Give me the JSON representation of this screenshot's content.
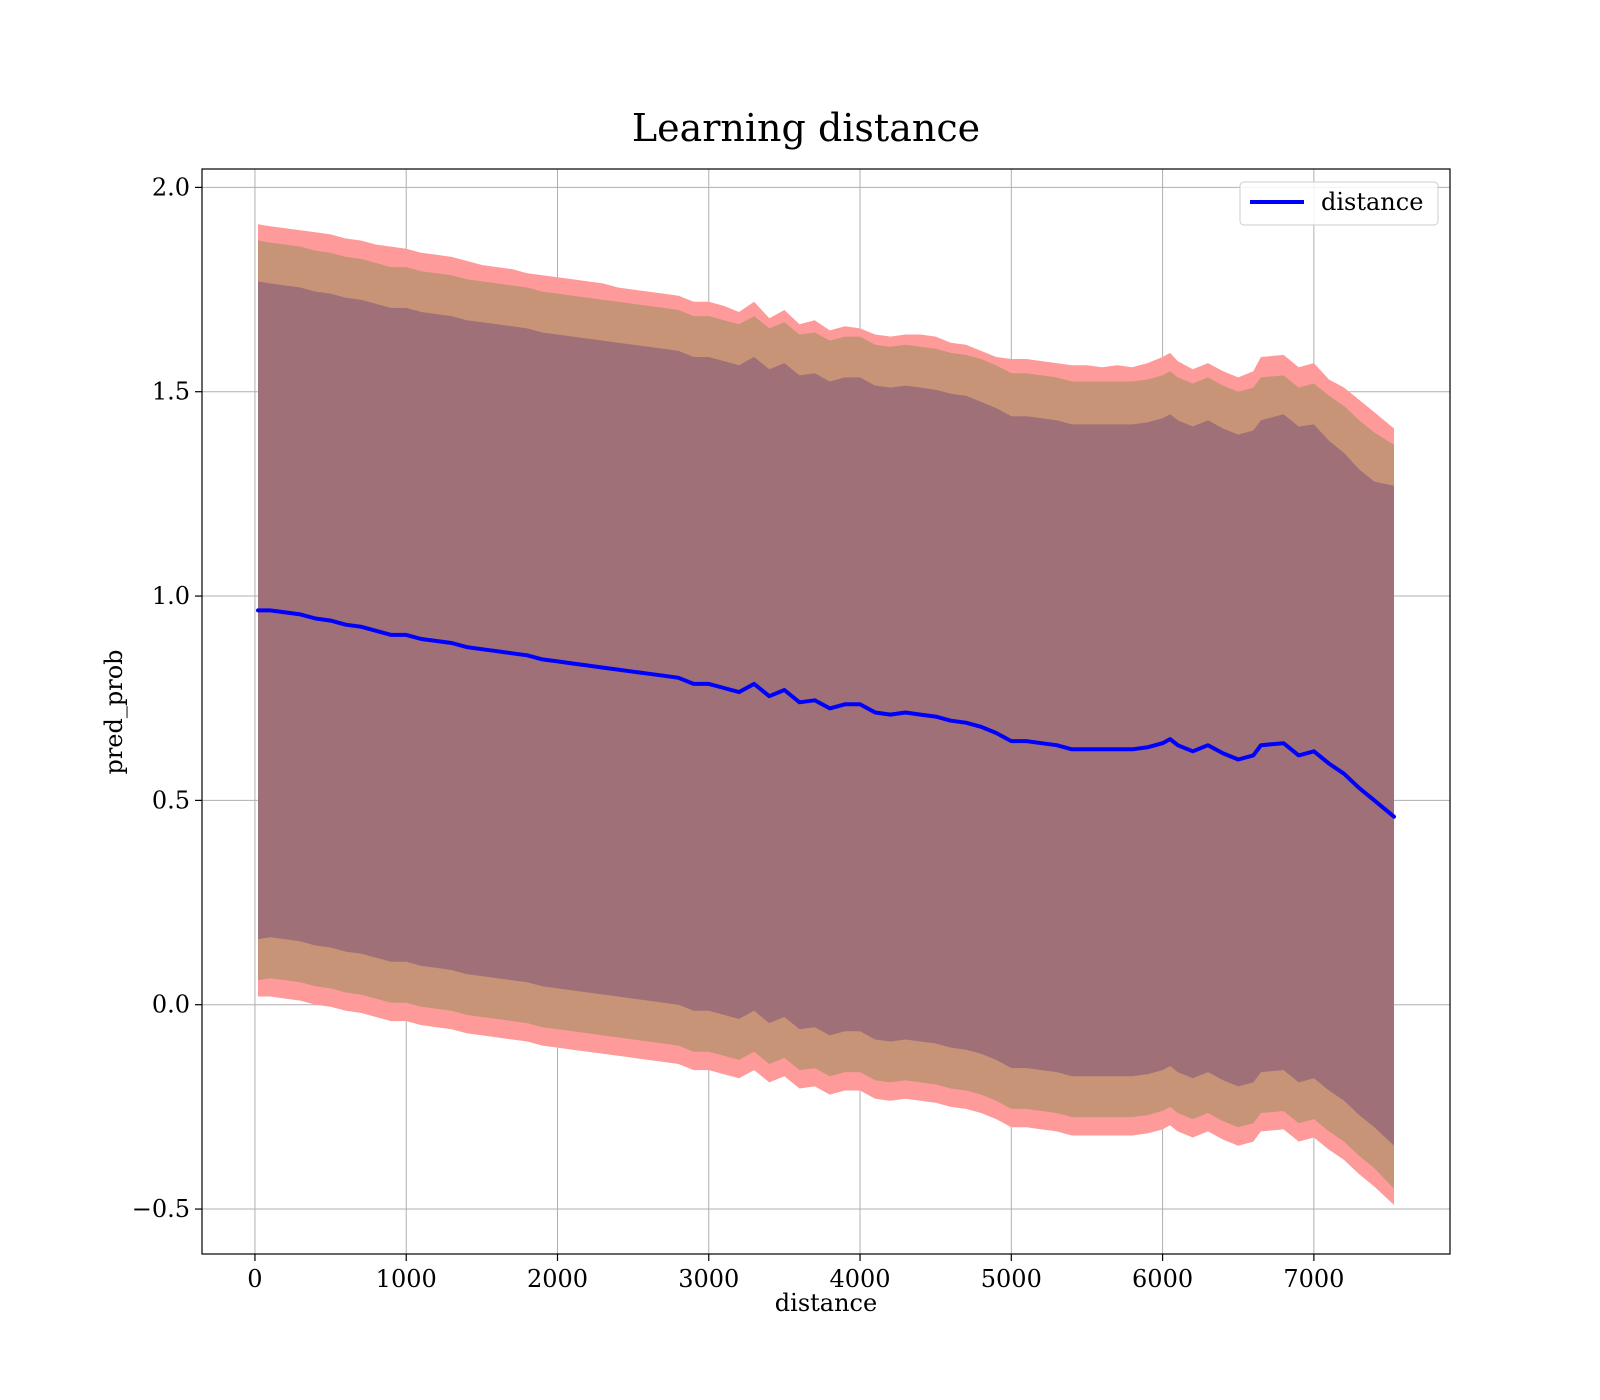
{
  "chart_data": {
    "type": "line",
    "title": "Learning distance",
    "xlabel": "distance",
    "ylabel": "pred_prob",
    "xlim": [
      -350,
      7900
    ],
    "ylim": [
      -0.61,
      2.045
    ],
    "xticks": [
      0,
      1000,
      2000,
      3000,
      4000,
      5000,
      6000,
      7000
    ],
    "xtick_labels": [
      "0",
      "1000",
      "2000",
      "3000",
      "4000",
      "5000",
      "6000",
      "7000"
    ],
    "yticks": [
      -0.5,
      0.0,
      0.5,
      1.0,
      1.5,
      2.0
    ],
    "ytick_labels": [
      "−0.5",
      "0.0",
      "0.5",
      "1.0",
      "1.5",
      "2.0"
    ],
    "grid": true,
    "legend": {
      "position": "top-right",
      "entries": [
        "distance"
      ]
    },
    "colors": {
      "line": "#0000ff",
      "band_outer": "#ff9a9a",
      "band_middle": "#c79478",
      "band_inner": "#a07079",
      "grid": "#b0b0b0"
    },
    "series": [
      {
        "name": "distance",
        "x": [
          20,
          100,
          200,
          300,
          400,
          500,
          600,
          700,
          800,
          900,
          1000,
          1100,
          1200,
          1300,
          1400,
          1500,
          1600,
          1700,
          1800,
          1900,
          2000,
          2100,
          2200,
          2300,
          2400,
          2500,
          2600,
          2700,
          2800,
          2900,
          3000,
          3100,
          3200,
          3300,
          3400,
          3500,
          3600,
          3700,
          3800,
          3900,
          4000,
          4100,
          4200,
          4300,
          4400,
          4500,
          4600,
          4700,
          4800,
          4900,
          5000,
          5100,
          5200,
          5300,
          5400,
          5500,
          5600,
          5700,
          5800,
          5900,
          6000,
          6050,
          6100,
          6200,
          6300,
          6400,
          6500,
          6600,
          6650,
          6800,
          6900,
          7000,
          7100,
          7200,
          7300,
          7400,
          7530
        ],
        "y": [
          0.965,
          0.965,
          0.96,
          0.955,
          0.945,
          0.94,
          0.93,
          0.925,
          0.915,
          0.905,
          0.905,
          0.895,
          0.89,
          0.885,
          0.875,
          0.87,
          0.865,
          0.86,
          0.855,
          0.845,
          0.84,
          0.835,
          0.83,
          0.825,
          0.82,
          0.815,
          0.81,
          0.805,
          0.8,
          0.785,
          0.785,
          0.775,
          0.765,
          0.785,
          0.755,
          0.77,
          0.74,
          0.745,
          0.725,
          0.735,
          0.735,
          0.715,
          0.71,
          0.715,
          0.71,
          0.705,
          0.695,
          0.69,
          0.68,
          0.665,
          0.645,
          0.645,
          0.64,
          0.635,
          0.625,
          0.625,
          0.625,
          0.625,
          0.625,
          0.63,
          0.64,
          0.65,
          0.635,
          0.62,
          0.635,
          0.615,
          0.6,
          0.61,
          0.635,
          0.64,
          0.61,
          0.62,
          0.59,
          0.565,
          0.53,
          0.5,
          0.46
        ]
      }
    ],
    "bands": [
      {
        "level": "outer",
        "upper": [
          1.91,
          1.905,
          1.9,
          1.895,
          1.89,
          1.885,
          1.875,
          1.87,
          1.86,
          1.855,
          1.85,
          1.84,
          1.835,
          1.83,
          1.82,
          1.81,
          1.805,
          1.8,
          1.79,
          1.785,
          1.78,
          1.775,
          1.77,
          1.765,
          1.755,
          1.75,
          1.745,
          1.74,
          1.735,
          1.72,
          1.72,
          1.71,
          1.695,
          1.72,
          1.68,
          1.7,
          1.665,
          1.675,
          1.65,
          1.66,
          1.655,
          1.64,
          1.635,
          1.64,
          1.64,
          1.635,
          1.62,
          1.615,
          1.6,
          1.585,
          1.58,
          1.58,
          1.575,
          1.57,
          1.565,
          1.565,
          1.56,
          1.565,
          1.56,
          1.57,
          1.585,
          1.595,
          1.575,
          1.555,
          1.57,
          1.55,
          1.535,
          1.55,
          1.585,
          1.59,
          1.56,
          1.57,
          1.53,
          1.51,
          1.48,
          1.45,
          1.41
        ],
        "lower": [
          0.02,
          0.02,
          0.015,
          0.01,
          0.0,
          -0.005,
          -0.015,
          -0.02,
          -0.03,
          -0.04,
          -0.04,
          -0.05,
          -0.055,
          -0.06,
          -0.07,
          -0.075,
          -0.08,
          -0.085,
          -0.09,
          -0.1,
          -0.105,
          -0.11,
          -0.115,
          -0.12,
          -0.125,
          -0.13,
          -0.135,
          -0.14,
          -0.145,
          -0.16,
          -0.16,
          -0.17,
          -0.18,
          -0.16,
          -0.19,
          -0.175,
          -0.205,
          -0.2,
          -0.22,
          -0.21,
          -0.21,
          -0.23,
          -0.235,
          -0.23,
          -0.235,
          -0.24,
          -0.25,
          -0.255,
          -0.265,
          -0.28,
          -0.3,
          -0.3,
          -0.305,
          -0.31,
          -0.32,
          -0.32,
          -0.32,
          -0.32,
          -0.32,
          -0.315,
          -0.305,
          -0.295,
          -0.31,
          -0.325,
          -0.31,
          -0.33,
          -0.345,
          -0.335,
          -0.31,
          -0.305,
          -0.335,
          -0.325,
          -0.355,
          -0.38,
          -0.415,
          -0.445,
          -0.49
        ]
      },
      {
        "level": "middle",
        "upper": [
          1.87,
          1.865,
          1.86,
          1.855,
          1.845,
          1.84,
          1.83,
          1.825,
          1.815,
          1.805,
          1.805,
          1.795,
          1.79,
          1.785,
          1.775,
          1.77,
          1.765,
          1.76,
          1.755,
          1.745,
          1.74,
          1.735,
          1.73,
          1.725,
          1.72,
          1.715,
          1.71,
          1.705,
          1.7,
          1.685,
          1.685,
          1.675,
          1.665,
          1.685,
          1.655,
          1.67,
          1.64,
          1.645,
          1.625,
          1.635,
          1.635,
          1.615,
          1.61,
          1.615,
          1.61,
          1.605,
          1.595,
          1.59,
          1.58,
          1.565,
          1.545,
          1.545,
          1.54,
          1.535,
          1.525,
          1.525,
          1.525,
          1.525,
          1.525,
          1.53,
          1.54,
          1.55,
          1.535,
          1.52,
          1.535,
          1.515,
          1.5,
          1.51,
          1.535,
          1.54,
          1.51,
          1.52,
          1.49,
          1.465,
          1.43,
          1.4,
          1.37
        ],
        "lower": [
          0.06,
          0.065,
          0.06,
          0.055,
          0.045,
          0.04,
          0.03,
          0.025,
          0.015,
          0.005,
          0.005,
          -0.005,
          -0.01,
          -0.015,
          -0.025,
          -0.03,
          -0.035,
          -0.04,
          -0.045,
          -0.055,
          -0.06,
          -0.065,
          -0.07,
          -0.075,
          -0.08,
          -0.085,
          -0.09,
          -0.095,
          -0.1,
          -0.115,
          -0.115,
          -0.125,
          -0.135,
          -0.115,
          -0.145,
          -0.13,
          -0.16,
          -0.155,
          -0.175,
          -0.165,
          -0.165,
          -0.185,
          -0.19,
          -0.185,
          -0.19,
          -0.195,
          -0.205,
          -0.21,
          -0.22,
          -0.235,
          -0.255,
          -0.255,
          -0.26,
          -0.265,
          -0.275,
          -0.275,
          -0.275,
          -0.275,
          -0.275,
          -0.27,
          -0.26,
          -0.25,
          -0.265,
          -0.28,
          -0.265,
          -0.285,
          -0.3,
          -0.29,
          -0.265,
          -0.26,
          -0.29,
          -0.28,
          -0.31,
          -0.335,
          -0.37,
          -0.4,
          -0.45
        ]
      },
      {
        "level": "inner",
        "upper": [
          1.77,
          1.765,
          1.76,
          1.755,
          1.745,
          1.74,
          1.73,
          1.725,
          1.715,
          1.705,
          1.705,
          1.695,
          1.69,
          1.685,
          1.675,
          1.67,
          1.665,
          1.66,
          1.655,
          1.645,
          1.64,
          1.635,
          1.63,
          1.625,
          1.62,
          1.615,
          1.61,
          1.605,
          1.6,
          1.585,
          1.585,
          1.575,
          1.565,
          1.585,
          1.555,
          1.57,
          1.54,
          1.545,
          1.525,
          1.535,
          1.535,
          1.515,
          1.51,
          1.515,
          1.51,
          1.505,
          1.495,
          1.49,
          1.475,
          1.46,
          1.44,
          1.44,
          1.435,
          1.43,
          1.42,
          1.42,
          1.42,
          1.42,
          1.42,
          1.425,
          1.435,
          1.445,
          1.43,
          1.415,
          1.43,
          1.41,
          1.395,
          1.405,
          1.43,
          1.445,
          1.415,
          1.42,
          1.38,
          1.35,
          1.31,
          1.28,
          1.27
        ],
        "lower": [
          0.16,
          0.165,
          0.16,
          0.155,
          0.145,
          0.14,
          0.13,
          0.125,
          0.115,
          0.105,
          0.105,
          0.095,
          0.09,
          0.085,
          0.075,
          0.07,
          0.065,
          0.06,
          0.055,
          0.045,
          0.04,
          0.035,
          0.03,
          0.025,
          0.02,
          0.015,
          0.01,
          0.005,
          0.0,
          -0.015,
          -0.015,
          -0.025,
          -0.035,
          -0.015,
          -0.045,
          -0.03,
          -0.06,
          -0.055,
          -0.075,
          -0.065,
          -0.065,
          -0.085,
          -0.09,
          -0.085,
          -0.09,
          -0.095,
          -0.105,
          -0.11,
          -0.12,
          -0.135,
          -0.155,
          -0.155,
          -0.16,
          -0.165,
          -0.175,
          -0.175,
          -0.175,
          -0.175,
          -0.175,
          -0.17,
          -0.16,
          -0.15,
          -0.165,
          -0.18,
          -0.165,
          -0.185,
          -0.2,
          -0.19,
          -0.165,
          -0.16,
          -0.19,
          -0.18,
          -0.21,
          -0.235,
          -0.27,
          -0.3,
          -0.345
        ]
      }
    ]
  }
}
